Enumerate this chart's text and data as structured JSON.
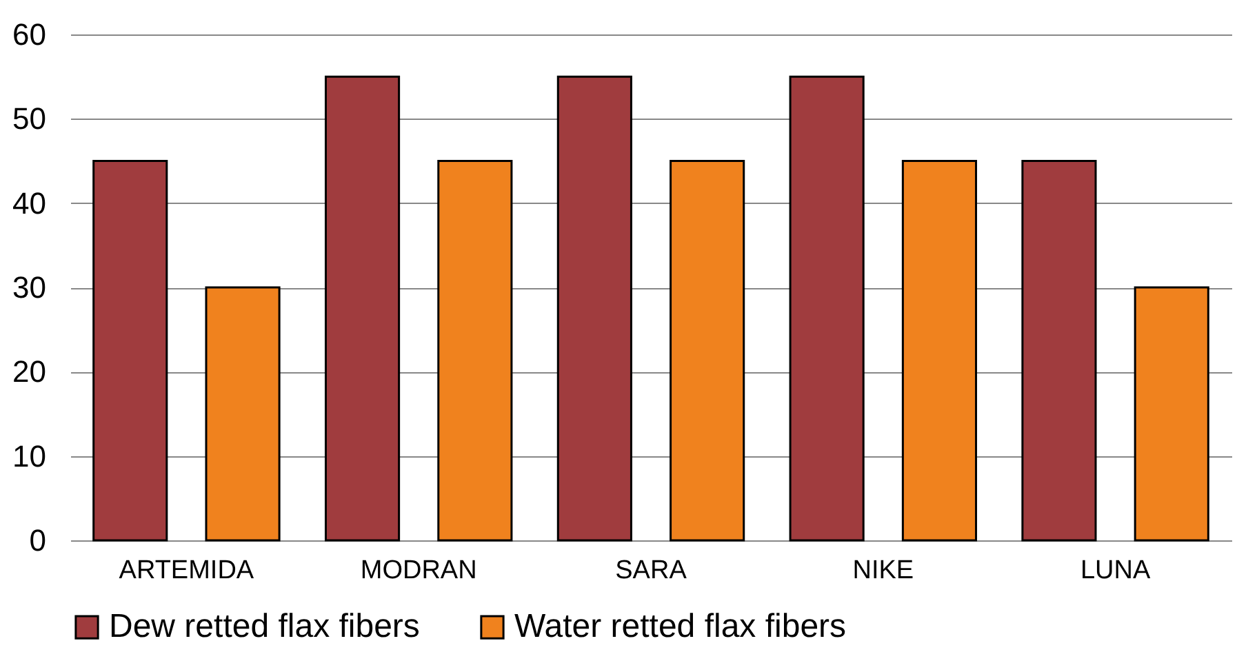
{
  "chart_data": {
    "type": "bar",
    "categories": [
      "ARTEMIDA",
      "MODRAN",
      "SARA",
      "NIKE",
      "LUNA"
    ],
    "series": [
      {
        "name": "Dew retted flax fibers",
        "color": "#a03c3e",
        "values": [
          45,
          55,
          55,
          55,
          45
        ]
      },
      {
        "name": "Water retted flax fibers",
        "color": "#f0821e",
        "values": [
          30,
          45,
          45,
          45,
          30
        ]
      }
    ],
    "ylim": [
      0,
      60
    ],
    "yticks": [
      0,
      10,
      20,
      30,
      40,
      50,
      60
    ],
    "grid": "y",
    "legend": "bottom"
  }
}
